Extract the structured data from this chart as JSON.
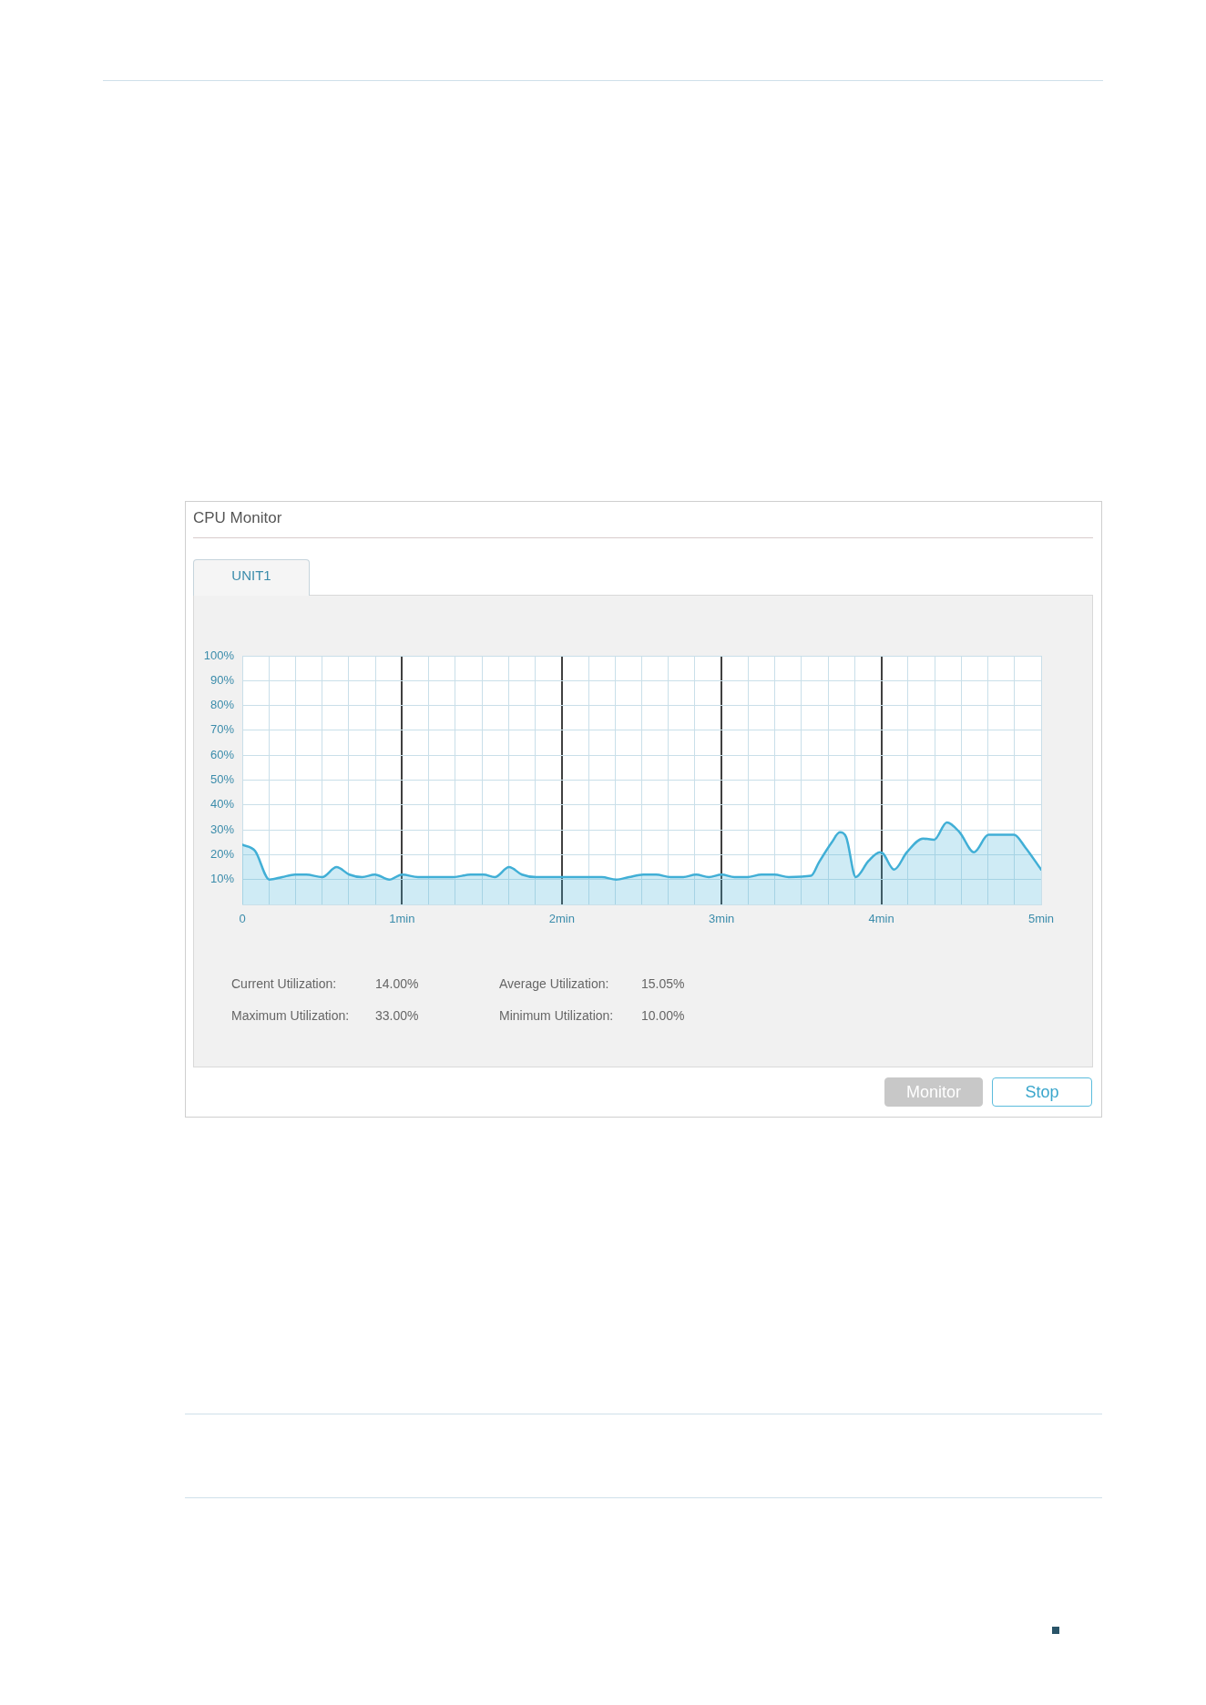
{
  "chart_data": {
    "type": "area",
    "title": "CPU Monitor",
    "subtitle": "UNIT1",
    "x": [
      0,
      0.08,
      0.17,
      0.25,
      0.33,
      0.4,
      0.5,
      0.59,
      0.67,
      0.75,
      0.83,
      0.92,
      1.0,
      1.1,
      1.32,
      1.43,
      1.51,
      1.58,
      1.67,
      1.75,
      1.84,
      2.0,
      2.25,
      2.34,
      2.42,
      2.51,
      2.59,
      2.68,
      2.76,
      2.84,
      2.92,
      3.0,
      3.08,
      3.16,
      3.25,
      3.33,
      3.42,
      3.56,
      3.61,
      3.69,
      3.74,
      3.78,
      3.84,
      3.92,
      3.99,
      4.01,
      4.08,
      4.16,
      4.26,
      4.33,
      4.41,
      4.49,
      4.58,
      4.67,
      4.75,
      4.83,
      4.9,
      5.0
    ],
    "values": [
      24,
      21.5,
      10,
      11,
      12,
      12,
      11,
      15,
      12,
      11,
      12,
      10,
      12,
      11,
      11,
      12,
      12,
      11,
      15,
      12,
      11,
      11,
      11,
      10,
      11,
      12,
      12,
      11,
      11,
      12,
      11,
      12,
      11,
      11,
      12,
      12,
      11,
      11.5,
      17,
      25,
      29,
      27,
      11,
      17.5,
      21,
      20.5,
      14,
      21,
      26.5,
      26,
      33,
      29,
      21,
      28,
      28,
      28,
      23,
      14
    ],
    "color": "#41afd6",
    "xlim": [
      0,
      5
    ],
    "xticks": [
      0,
      {
        "value": 0.1667,
        "label": null
      },
      {
        "value": 0.3333,
        "label": null
      },
      {
        "value": 0.5,
        "label": null
      },
      {
        "value": 0.6667,
        "label": null
      },
      {
        "value": 0.8333,
        "label": null
      },
      {
        "value": 1,
        "label": "1min"
      },
      {
        "value": 1.1667,
        "label": null
      },
      {
        "value": 1.3333,
        "label": null
      },
      {
        "value": 1.5,
        "label": null
      },
      {
        "value": 1.6667,
        "label": null
      },
      {
        "value": 1.8333,
        "label": null
      },
      {
        "value": 2,
        "label": "2min"
      },
      {
        "value": 2.1667,
        "label": null
      },
      {
        "value": 2.3333,
        "label": null
      },
      {
        "value": 2.5,
        "label": null
      },
      {
        "value": 2.6667,
        "label": null
      },
      {
        "value": 2.8333,
        "label": null
      },
      {
        "value": 3,
        "label": "3min"
      },
      {
        "value": 3.1667,
        "label": null
      },
      {
        "value": 3.3333,
        "label": null
      },
      {
        "value": 3.5,
        "label": null
      },
      {
        "value": 3.6667,
        "label": null
      },
      {
        "value": 3.8333,
        "label": null
      },
      {
        "value": 4,
        "label": "4min"
      },
      {
        "value": 4.1667,
        "label": null
      },
      {
        "value": 4.3333,
        "label": null
      },
      {
        "value": 4.5,
        "label": null
      },
      {
        "value": 4.6667,
        "label": null
      },
      {
        "value": 4.8333,
        "label": null
      },
      {
        "value": 5,
        "label": "5min"
      }
    ],
    "ylim": [
      0,
      100
    ],
    "yticks": [
      {
        "value": 0,
        "label": null
      },
      {
        "value": 10,
        "label": "10%"
      },
      {
        "value": 20,
        "label": "20%"
      },
      {
        "value": 30,
        "label": "30%"
      },
      {
        "value": 40,
        "label": "40%"
      },
      {
        "value": 50,
        "label": "50%"
      },
      {
        "value": 60,
        "label": "60%"
      },
      {
        "value": 70,
        "label": "70%"
      },
      {
        "value": 80,
        "label": "80%"
      },
      {
        "value": 90,
        "label": "90%"
      },
      {
        "value": 100,
        "label": "100%"
      }
    ],
    "grid": true,
    "annotations": [
      "Current Utilization:",
      "14.00%",
      "Average Utilization:",
      "15.05%",
      "Maximum Utilization:",
      "33.00%",
      "Minimum Utilization:",
      "10.00%",
      "Monitor",
      "Stop"
    ]
  }
}
